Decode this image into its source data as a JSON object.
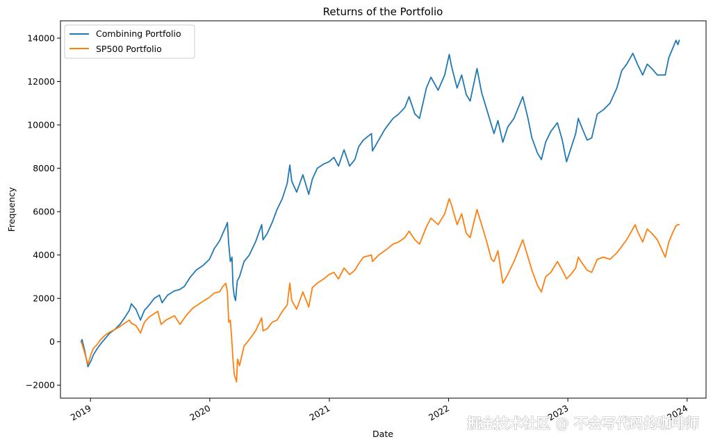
{
  "chart_data": {
    "type": "line",
    "title": "Returns of the Portfolio",
    "xlabel": "Date",
    "ylabel": "Frequency",
    "xlim": [
      "2018-10-01",
      "2024-02-28"
    ],
    "ylim": [
      -2600,
      14800
    ],
    "x_ticks": [
      {
        "date": "2019-01-01",
        "label": "2019"
      },
      {
        "date": "2020-01-01",
        "label": "2020"
      },
      {
        "date": "2021-01-01",
        "label": "2021"
      },
      {
        "date": "2022-01-01",
        "label": "2022"
      },
      {
        "date": "2023-01-01",
        "label": "2023"
      },
      {
        "date": "2024-01-01",
        "label": "2024"
      }
    ],
    "y_ticks": [
      {
        "value": -2000,
        "label": "−2000"
      },
      {
        "value": 0,
        "label": "0"
      },
      {
        "value": 2000,
        "label": "2000"
      },
      {
        "value": 4000,
        "label": "4000"
      },
      {
        "value": 6000,
        "label": "6000"
      },
      {
        "value": 8000,
        "label": "8000"
      },
      {
        "value": 10000,
        "label": "10000"
      },
      {
        "value": 12000,
        "label": "12000"
      },
      {
        "value": 14000,
        "label": "14000"
      }
    ],
    "legend_position": "top-left",
    "grid": false,
    "series": [
      {
        "name": "Combining Portfolio",
        "color": "#1f77b4",
        "points": [
          [
            "2018-12-03",
            0
          ],
          [
            "2018-12-06",
            100
          ],
          [
            "2018-12-14",
            -400
          ],
          [
            "2018-12-24",
            -1150
          ],
          [
            "2019-01-02",
            -900
          ],
          [
            "2019-01-10",
            -600
          ],
          [
            "2019-01-20",
            -350
          ],
          [
            "2019-02-01",
            -100
          ],
          [
            "2019-02-15",
            150
          ],
          [
            "2019-03-01",
            400
          ],
          [
            "2019-03-15",
            550
          ],
          [
            "2019-04-01",
            800
          ],
          [
            "2019-04-15",
            1100
          ],
          [
            "2019-04-30",
            1450
          ],
          [
            "2019-05-06",
            1750
          ],
          [
            "2019-05-20",
            1500
          ],
          [
            "2019-06-03",
            1000
          ],
          [
            "2019-06-15",
            1450
          ],
          [
            "2019-06-30",
            1700
          ],
          [
            "2019-07-15",
            2000
          ],
          [
            "2019-07-31",
            2150
          ],
          [
            "2019-08-08",
            1800
          ],
          [
            "2019-08-25",
            2150
          ],
          [
            "2019-09-15",
            2350
          ],
          [
            "2019-09-30",
            2400
          ],
          [
            "2019-10-15",
            2550
          ],
          [
            "2019-11-01",
            2950
          ],
          [
            "2019-11-20",
            3300
          ],
          [
            "2019-12-10",
            3500
          ],
          [
            "2019-12-31",
            3800
          ],
          [
            "2020-01-15",
            4300
          ],
          [
            "2020-01-31",
            4650
          ],
          [
            "2020-02-10",
            5000
          ],
          [
            "2020-02-19",
            5300
          ],
          [
            "2020-02-24",
            5500
          ],
          [
            "2020-02-28",
            4500
          ],
          [
            "2020-03-04",
            3700
          ],
          [
            "2020-03-09",
            3900
          ],
          [
            "2020-03-12",
            2600
          ],
          [
            "2020-03-16",
            2100
          ],
          [
            "2020-03-20",
            1900
          ],
          [
            "2020-03-25",
            2800
          ],
          [
            "2020-04-01",
            3000
          ],
          [
            "2020-04-15",
            3700
          ],
          [
            "2020-05-01",
            4000
          ],
          [
            "2020-05-20",
            4600
          ],
          [
            "2020-06-08",
            5400
          ],
          [
            "2020-06-12",
            4700
          ],
          [
            "2020-06-25",
            5000
          ],
          [
            "2020-07-10",
            5500
          ],
          [
            "2020-07-25",
            6100
          ],
          [
            "2020-08-10",
            6600
          ],
          [
            "2020-08-25",
            7300
          ],
          [
            "2020-09-02",
            8150
          ],
          [
            "2020-09-08",
            7400
          ],
          [
            "2020-09-23",
            6900
          ],
          [
            "2020-10-12",
            7700
          ],
          [
            "2020-10-30",
            6800
          ],
          [
            "2020-11-10",
            7500
          ],
          [
            "2020-11-25",
            8000
          ],
          [
            "2020-12-15",
            8200
          ],
          [
            "2020-12-31",
            8300
          ],
          [
            "2021-01-15",
            8500
          ],
          [
            "2021-01-29",
            8100
          ],
          [
            "2021-02-15",
            8850
          ],
          [
            "2021-03-04",
            8100
          ],
          [
            "2021-03-20",
            8400
          ],
          [
            "2021-04-01",
            9000
          ],
          [
            "2021-04-15",
            9300
          ],
          [
            "2021-05-10",
            9600
          ],
          [
            "2021-05-13",
            8800
          ],
          [
            "2021-06-01",
            9300
          ],
          [
            "2021-06-20",
            9800
          ],
          [
            "2021-07-15",
            10300
          ],
          [
            "2021-08-01",
            10500
          ],
          [
            "2021-08-20",
            10800
          ],
          [
            "2021-09-02",
            11300
          ],
          [
            "2021-09-20",
            10500
          ],
          [
            "2021-10-04",
            10300
          ],
          [
            "2021-10-25",
            11700
          ],
          [
            "2021-11-08",
            12200
          ],
          [
            "2021-11-30",
            11600
          ],
          [
            "2021-12-20",
            12300
          ],
          [
            "2022-01-03",
            13250
          ],
          [
            "2022-01-10",
            12700
          ],
          [
            "2022-01-27",
            11700
          ],
          [
            "2022-02-10",
            12300
          ],
          [
            "2022-02-24",
            11400
          ],
          [
            "2022-03-08",
            11100
          ],
          [
            "2022-03-29",
            12600
          ],
          [
            "2022-04-12",
            11500
          ],
          [
            "2022-04-28",
            10700
          ],
          [
            "2022-05-12",
            10000
          ],
          [
            "2022-05-20",
            9600
          ],
          [
            "2022-06-01",
            10200
          ],
          [
            "2022-06-16",
            9200
          ],
          [
            "2022-07-01",
            9900
          ],
          [
            "2022-07-20",
            10300
          ],
          [
            "2022-08-16",
            11300
          ],
          [
            "2022-09-01",
            10300
          ],
          [
            "2022-09-13",
            9400
          ],
          [
            "2022-09-30",
            8700
          ],
          [
            "2022-10-12",
            8400
          ],
          [
            "2022-10-25",
            9200
          ],
          [
            "2022-11-10",
            9700
          ],
          [
            "2022-11-30",
            10100
          ],
          [
            "2022-12-15",
            9300
          ],
          [
            "2022-12-28",
            8300
          ],
          [
            "2023-01-10",
            8900
          ],
          [
            "2023-01-25",
            9600
          ],
          [
            "2023-02-02",
            10300
          ],
          [
            "2023-02-15",
            9800
          ],
          [
            "2023-03-01",
            9300
          ],
          [
            "2023-03-15",
            9400
          ],
          [
            "2023-04-01",
            10500
          ],
          [
            "2023-04-20",
            10700
          ],
          [
            "2023-05-10",
            11000
          ],
          [
            "2023-05-31",
            11700
          ],
          [
            "2023-06-15",
            12500
          ],
          [
            "2023-06-30",
            12800
          ],
          [
            "2023-07-19",
            13300
          ],
          [
            "2023-08-02",
            12800
          ],
          [
            "2023-08-18",
            12300
          ],
          [
            "2023-09-01",
            12800
          ],
          [
            "2023-09-15",
            12600
          ],
          [
            "2023-10-02",
            12300
          ],
          [
            "2023-10-26",
            12300
          ],
          [
            "2023-11-06",
            13100
          ],
          [
            "2023-11-20",
            13600
          ],
          [
            "2023-11-28",
            13900
          ],
          [
            "2023-12-04",
            13700
          ],
          [
            "2023-12-08",
            13900
          ]
        ]
      },
      {
        "name": "SP500 Portfolio",
        "color": "#ff7f0e",
        "points": [
          [
            "2018-12-03",
            0
          ],
          [
            "2018-12-06",
            -100
          ],
          [
            "2018-12-14",
            -500
          ],
          [
            "2018-12-24",
            -1050
          ],
          [
            "2019-01-02",
            -600
          ],
          [
            "2019-01-10",
            -300
          ],
          [
            "2019-01-20",
            -150
          ],
          [
            "2019-02-01",
            100
          ],
          [
            "2019-02-15",
            300
          ],
          [
            "2019-03-01",
            450
          ],
          [
            "2019-03-15",
            550
          ],
          [
            "2019-04-01",
            700
          ],
          [
            "2019-04-15",
            850
          ],
          [
            "2019-04-30",
            1000
          ],
          [
            "2019-05-06",
            850
          ],
          [
            "2019-05-20",
            750
          ],
          [
            "2019-06-03",
            400
          ],
          [
            "2019-06-15",
            900
          ],
          [
            "2019-06-30",
            1150
          ],
          [
            "2019-07-15",
            1300
          ],
          [
            "2019-07-26",
            1400
          ],
          [
            "2019-08-05",
            800
          ],
          [
            "2019-08-20",
            1000
          ],
          [
            "2019-09-15",
            1200
          ],
          [
            "2019-10-02",
            800
          ],
          [
            "2019-10-20",
            1200
          ],
          [
            "2019-11-10",
            1550
          ],
          [
            "2019-11-30",
            1750
          ],
          [
            "2019-12-15",
            1900
          ],
          [
            "2019-12-31",
            2050
          ],
          [
            "2020-01-15",
            2250
          ],
          [
            "2020-01-31",
            2300
          ],
          [
            "2020-02-10",
            2550
          ],
          [
            "2020-02-19",
            2700
          ],
          [
            "2020-02-24",
            2300
          ],
          [
            "2020-02-28",
            900
          ],
          [
            "2020-03-04",
            1000
          ],
          [
            "2020-03-09",
            -50
          ],
          [
            "2020-03-12",
            -800
          ],
          [
            "2020-03-16",
            -1500
          ],
          [
            "2020-03-23",
            -1850
          ],
          [
            "2020-03-26",
            -800
          ],
          [
            "2020-04-01",
            -1100
          ],
          [
            "2020-04-15",
            -200
          ],
          [
            "2020-05-01",
            100
          ],
          [
            "2020-05-20",
            500
          ],
          [
            "2020-06-08",
            1100
          ],
          [
            "2020-06-12",
            500
          ],
          [
            "2020-06-25",
            600
          ],
          [
            "2020-07-10",
            900
          ],
          [
            "2020-07-25",
            1000
          ],
          [
            "2020-08-10",
            1400
          ],
          [
            "2020-08-25",
            1700
          ],
          [
            "2020-09-02",
            2700
          ],
          [
            "2020-09-08",
            1900
          ],
          [
            "2020-09-23",
            1500
          ],
          [
            "2020-10-12",
            2300
          ],
          [
            "2020-10-30",
            1600
          ],
          [
            "2020-11-10",
            2500
          ],
          [
            "2020-11-25",
            2700
          ],
          [
            "2020-12-15",
            2900
          ],
          [
            "2020-12-31",
            3100
          ],
          [
            "2021-01-15",
            3200
          ],
          [
            "2021-01-29",
            2900
          ],
          [
            "2021-02-15",
            3400
          ],
          [
            "2021-03-04",
            3100
          ],
          [
            "2021-03-20",
            3300
          ],
          [
            "2021-04-01",
            3600
          ],
          [
            "2021-04-15",
            3900
          ],
          [
            "2021-05-10",
            4000
          ],
          [
            "2021-05-13",
            3700
          ],
          [
            "2021-06-01",
            4000
          ],
          [
            "2021-06-20",
            4200
          ],
          [
            "2021-07-15",
            4500
          ],
          [
            "2021-08-01",
            4600
          ],
          [
            "2021-08-20",
            4800
          ],
          [
            "2021-09-02",
            5100
          ],
          [
            "2021-09-20",
            4700
          ],
          [
            "2021-10-04",
            4500
          ],
          [
            "2021-10-25",
            5300
          ],
          [
            "2021-11-08",
            5700
          ],
          [
            "2021-11-30",
            5400
          ],
          [
            "2021-12-20",
            5900
          ],
          [
            "2022-01-03",
            6600
          ],
          [
            "2022-01-10",
            6300
          ],
          [
            "2022-01-27",
            5400
          ],
          [
            "2022-02-10",
            5900
          ],
          [
            "2022-02-24",
            5000
          ],
          [
            "2022-03-08",
            4800
          ],
          [
            "2022-03-29",
            6100
          ],
          [
            "2022-04-12",
            5400
          ],
          [
            "2022-04-28",
            4600
          ],
          [
            "2022-05-12",
            3800
          ],
          [
            "2022-05-20",
            3700
          ],
          [
            "2022-06-01",
            4200
          ],
          [
            "2022-06-16",
            2700
          ],
          [
            "2022-07-01",
            3100
          ],
          [
            "2022-07-20",
            3700
          ],
          [
            "2022-08-16",
            4700
          ],
          [
            "2022-09-01",
            3900
          ],
          [
            "2022-09-13",
            3300
          ],
          [
            "2022-09-30",
            2600
          ],
          [
            "2022-10-12",
            2300
          ],
          [
            "2022-10-25",
            3000
          ],
          [
            "2022-11-10",
            3200
          ],
          [
            "2022-11-30",
            3700
          ],
          [
            "2022-12-15",
            3300
          ],
          [
            "2022-12-28",
            2900
          ],
          [
            "2023-01-10",
            3100
          ],
          [
            "2023-01-25",
            3400
          ],
          [
            "2023-02-02",
            3900
          ],
          [
            "2023-02-15",
            3600
          ],
          [
            "2023-03-01",
            3300
          ],
          [
            "2023-03-15",
            3200
          ],
          [
            "2023-04-01",
            3800
          ],
          [
            "2023-04-20",
            3900
          ],
          [
            "2023-05-10",
            3800
          ],
          [
            "2023-05-31",
            4100
          ],
          [
            "2023-06-15",
            4400
          ],
          [
            "2023-06-30",
            4700
          ],
          [
            "2023-07-26",
            5400
          ],
          [
            "2023-08-02",
            5100
          ],
          [
            "2023-08-18",
            4600
          ],
          [
            "2023-09-01",
            5200
          ],
          [
            "2023-09-15",
            5000
          ],
          [
            "2023-10-02",
            4700
          ],
          [
            "2023-10-26",
            3900
          ],
          [
            "2023-11-06",
            4600
          ],
          [
            "2023-11-20",
            5100
          ],
          [
            "2023-11-28",
            5350
          ],
          [
            "2023-12-04",
            5400
          ],
          [
            "2023-12-08",
            5400
          ]
        ]
      }
    ]
  },
  "watermark": "掘金技术社区 @ 不会写代码的咖啡师"
}
